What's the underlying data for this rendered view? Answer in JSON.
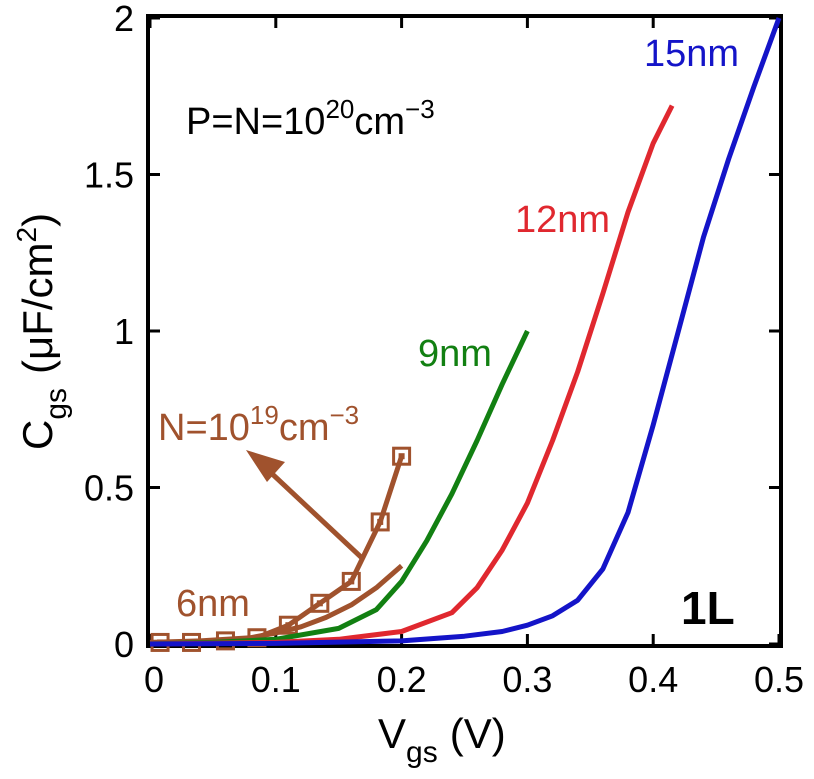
{
  "chart_data": {
    "type": "line",
    "xlabel": {
      "main": "V",
      "sub": "gs",
      "unit": "(V)"
    },
    "ylabel": {
      "main": "C",
      "sub": "gs",
      "unit_pre": "(μF/cm",
      "unit_sup": "2",
      "unit_post": ")"
    },
    "xlim": [
      0,
      0.5
    ],
    "ylim": [
      0,
      2
    ],
    "xticks": [
      0,
      0.1,
      0.2,
      0.3,
      0.4,
      0.5
    ],
    "xtick_labels": [
      "0",
      "0.1",
      "0.2",
      "0.3",
      "0.4",
      "0.5"
    ],
    "yticks": [
      0,
      0.5,
      1,
      1.5,
      2
    ],
    "ytick_labels": [
      "0",
      "0.5",
      "1",
      "1.5",
      "2"
    ],
    "grid": false,
    "legend": "none",
    "annotations": {
      "doping": {
        "base": "P=N=10",
        "sup": "20",
        "unit": "cm",
        "unit_sup": "−3"
      },
      "doping2": {
        "base": "N=10",
        "sup": "19",
        "unit": "cm",
        "unit_sup": "−3"
      },
      "layer": "1L"
    },
    "series": [
      {
        "name": "6nm",
        "color": "#A0522D",
        "marker": "none",
        "x": [
          0.0,
          0.04,
          0.08,
          0.1,
          0.12,
          0.14,
          0.16,
          0.18,
          0.2
        ],
        "y": [
          0.005,
          0.01,
          0.02,
          0.035,
          0.055,
          0.085,
          0.125,
          0.18,
          0.25
        ]
      },
      {
        "name": "N=10^19cm^-3",
        "color": "#A0522D",
        "marker": "square",
        "x": [
          0.008,
          0.033,
          0.06,
          0.085,
          0.11,
          0.135,
          0.16,
          0.183,
          0.2
        ],
        "y": [
          0.005,
          0.005,
          0.01,
          0.02,
          0.06,
          0.13,
          0.2,
          0.39,
          0.6
        ]
      },
      {
        "name": "9nm",
        "color": "#128012",
        "marker": "none",
        "x": [
          0.0,
          0.05,
          0.1,
          0.15,
          0.18,
          0.2,
          0.22,
          0.24,
          0.26,
          0.28,
          0.3
        ],
        "y": [
          0.0,
          0.005,
          0.015,
          0.05,
          0.11,
          0.2,
          0.33,
          0.48,
          0.65,
          0.83,
          1.0
        ]
      },
      {
        "name": "12nm",
        "color": "#E0282F",
        "marker": "none",
        "x": [
          0.0,
          0.1,
          0.15,
          0.2,
          0.24,
          0.26,
          0.28,
          0.3,
          0.32,
          0.34,
          0.36,
          0.38,
          0.4,
          0.415
        ],
        "y": [
          0.0,
          0.005,
          0.015,
          0.04,
          0.1,
          0.18,
          0.3,
          0.45,
          0.65,
          0.87,
          1.12,
          1.38,
          1.6,
          1.72
        ]
      },
      {
        "name": "15nm",
        "color": "#1414C8",
        "marker": "none",
        "x": [
          0.0,
          0.1,
          0.2,
          0.25,
          0.28,
          0.3,
          0.32,
          0.34,
          0.36,
          0.38,
          0.4,
          0.42,
          0.44,
          0.46,
          0.48,
          0.5
        ],
        "y": [
          0.0,
          0.002,
          0.01,
          0.025,
          0.04,
          0.06,
          0.09,
          0.14,
          0.24,
          0.42,
          0.7,
          1.0,
          1.3,
          1.55,
          1.78,
          2.0
        ]
      }
    ]
  }
}
